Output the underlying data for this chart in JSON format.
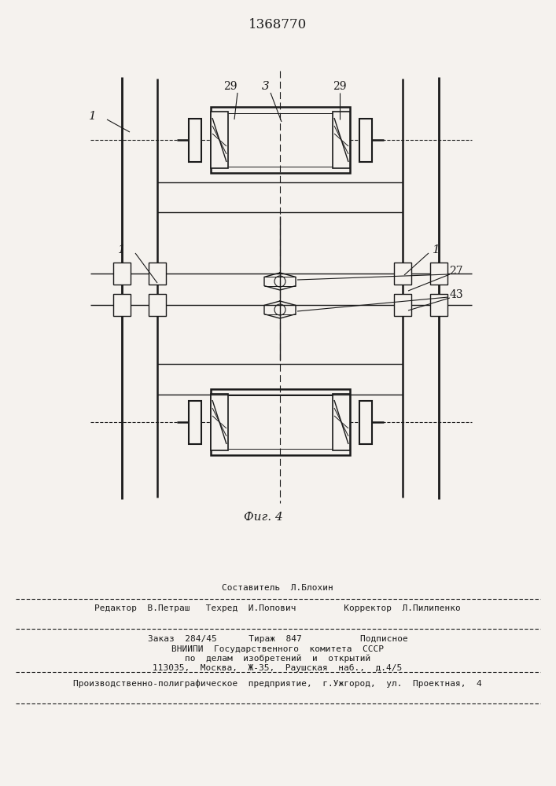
{
  "patent_number": "1368770",
  "fig_caption": "Фиг. 4",
  "bg": "#f5f2ee",
  "lc": "#1a1a1a",
  "footer_composer": "Составитель  Л.Блохин",
  "footer_editor": "Редактор  В.Петраш   Техред  И.Попович         Корректор  Л.Пилипенко",
  "footer_order": "Заказ  284/45      Тираж  847           Подписное",
  "footer_vniip1": "ВНИИПИ  Государственного  комитета  СССР",
  "footer_vniip2": "по  делам  изобретений  и  открытий",
  "footer_addr": "113035,  Москва,  Ж-35,  Раушская  наб.,  д.4/5",
  "footer_prod": "Производственно-полиграфическое  предприятие,  г.Ужгород,  ул.  Проектная,  4"
}
